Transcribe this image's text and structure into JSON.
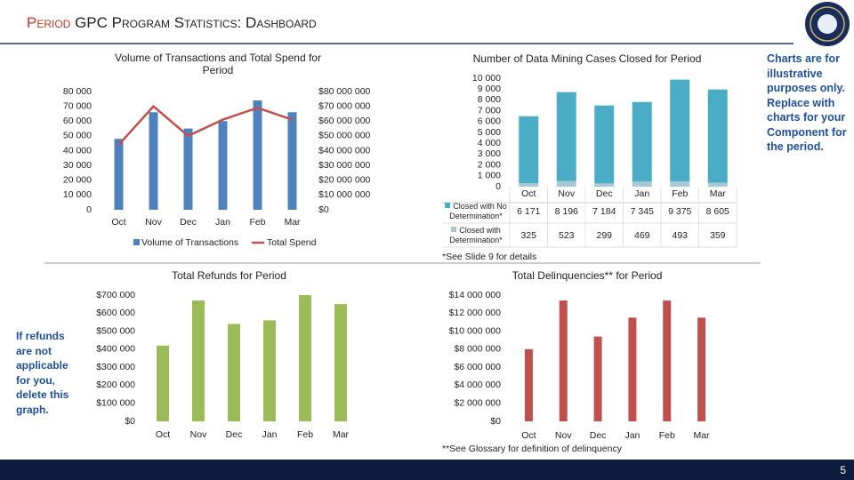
{
  "header": {
    "title_highlight": "Period",
    "title": "GPC Program Statistics: Dashboard"
  },
  "notes": {
    "illustrative": "Charts are for illustrative purposes only. Replace with charts for your Component for the period.",
    "refunds": "If refunds are not applicable for you, delete this graph."
  },
  "page_number": "5",
  "chart_data": [
    {
      "type": "combo",
      "title": "Volume of Transactions and Total Spend for Period",
      "categories": [
        "Oct",
        "Nov",
        "Dec",
        "Jan",
        "Feb",
        "Mar"
      ],
      "series": [
        {
          "name": "Volume of Transactions",
          "type": "bar",
          "color": "#4f81bd",
          "values": [
            48000,
            66000,
            55000,
            60000,
            74000,
            66000
          ]
        },
        {
          "name": "Total Spend",
          "type": "line",
          "axis": "y2",
          "color": "#c0504d",
          "values": [
            44000000,
            70000000,
            50000000,
            61000000,
            69000000,
            61000000
          ]
        }
      ],
      "ylim": [
        0,
        80000
      ],
      "yticks": [
        0,
        {
          "value": 10000,
          "label": "10 000"
        },
        {
          "value": 20000,
          "label": "20 000"
        },
        {
          "value": 30000,
          "label": "30 000"
        },
        {
          "value": 40000,
          "label": "40 000"
        },
        {
          "value": 50000,
          "label": "50 000"
        },
        {
          "value": 60000,
          "label": "60 000"
        },
        {
          "value": 70000,
          "label": "70 000"
        },
        {
          "value": 80000,
          "label": "80 000"
        }
      ],
      "y2lim": [
        0,
        80000000
      ],
      "y2ticks": [
        {
          "value": 0,
          "label": "$0"
        },
        {
          "value": 10000000,
          "label": "$10 000 000"
        },
        {
          "value": 20000000,
          "label": "$20 000 000"
        },
        {
          "value": 30000000,
          "label": "$30 000 000"
        },
        {
          "value": 40000000,
          "label": "$40 000 000"
        },
        {
          "value": 50000000,
          "label": "$50 000 000"
        },
        {
          "value": 60000000,
          "label": "$60 000 000"
        },
        {
          "value": 70000000,
          "label": "$70 000 000"
        },
        {
          "value": 80000000,
          "label": "$80 000 000"
        }
      ],
      "legend": "bottom"
    },
    {
      "type": "stacked_bar",
      "title": "Number of Data Mining Cases Closed for Period",
      "categories": [
        "Oct",
        "Nov",
        "Dec",
        "Jan",
        "Feb",
        "Mar"
      ],
      "series": [
        {
          "name": "Closed with No Determination*",
          "color": "#4bacc6",
          "values": [
            6171,
            8196,
            7184,
            7345,
            9375,
            8605
          ],
          "value_labels": [
            "6 171",
            "8 196",
            "7 184",
            "7 345",
            "9 375",
            "8 605"
          ]
        },
        {
          "name": "Closed with Determination*",
          "color": "#a5c9d6",
          "values": [
            325,
            523,
            299,
            469,
            493,
            359
          ],
          "value_labels": [
            "325",
            "523",
            "299",
            "469",
            "493",
            "359"
          ]
        }
      ],
      "ylim": [
        0,
        10000
      ],
      "yticks": [
        0,
        {
          "value": 1000,
          "label": "1 000"
        },
        {
          "value": 2000,
          "label": "2 000"
        },
        {
          "value": 3000,
          "label": "3 000"
        },
        {
          "value": 4000,
          "label": "4 000"
        },
        {
          "value": 5000,
          "label": "5 000"
        },
        {
          "value": 6000,
          "label": "6 000"
        },
        {
          "value": 7000,
          "label": "7 000"
        },
        {
          "value": 8000,
          "label": "8 000"
        },
        {
          "value": 9000,
          "label": "9 000"
        },
        {
          "value": 10000,
          "label": "10 000"
        }
      ],
      "data_table": true,
      "note": "*See Slide 9 for details"
    },
    {
      "type": "bar",
      "title": "Total Refunds for Period",
      "categories": [
        "Oct",
        "Nov",
        "Dec",
        "Jan",
        "Feb",
        "Mar"
      ],
      "values": [
        420000,
        670000,
        540000,
        560000,
        700000,
        650000
      ],
      "color": "#9bbb59",
      "ylim": [
        0,
        700000
      ],
      "yticks": [
        {
          "value": 0,
          "label": "$0"
        },
        {
          "value": 100000,
          "label": "$100 000"
        },
        {
          "value": 200000,
          "label": "$200 000"
        },
        {
          "value": 300000,
          "label": "$300 000"
        },
        {
          "value": 400000,
          "label": "$400 000"
        },
        {
          "value": 500000,
          "label": "$500 000"
        },
        {
          "value": 600000,
          "label": "$600 000"
        },
        {
          "value": 700000,
          "label": "$700 000"
        }
      ]
    },
    {
      "type": "bar",
      "title": "Total Delinquencies** for Period",
      "categories": [
        "Oct",
        "Nov",
        "Dec",
        "Jan",
        "Feb",
        "Mar"
      ],
      "values": [
        8000000,
        13400000,
        9400000,
        11500000,
        13400000,
        11500000
      ],
      "color": "#c0504d",
      "ylim": [
        0,
        14000000
      ],
      "yticks": [
        {
          "value": 0,
          "label": "$0"
        },
        {
          "value": 2000000,
          "label": "$2 000 000"
        },
        {
          "value": 4000000,
          "label": "$4 000 000"
        },
        {
          "value": 6000000,
          "label": "$6 000 000"
        },
        {
          "value": 8000000,
          "label": "$8 000 000"
        },
        {
          "value": 10000000,
          "label": "$10 000 000"
        },
        {
          "value": 12000000,
          "label": "$12 000 000"
        },
        {
          "value": 14000000,
          "label": "$14 000 000"
        }
      ],
      "note": "**See Glossary for definition of delinquency"
    }
  ]
}
